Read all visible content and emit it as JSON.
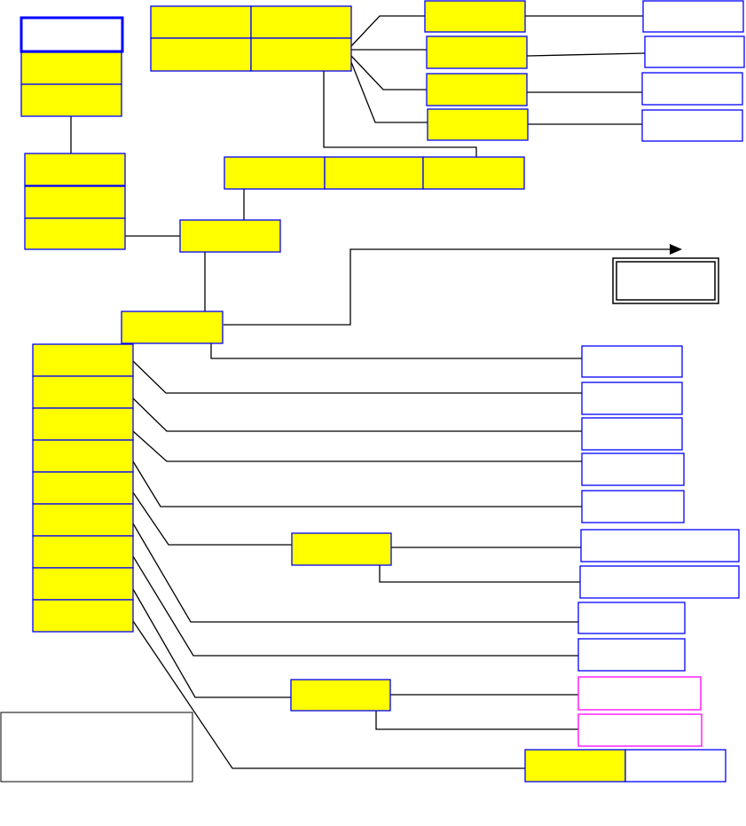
{
  "colors": {
    "node_fill": "#ffff00",
    "node_border": "#0000ff",
    "empty_fill": "#ffffff",
    "highlight_border": "#ff00ff",
    "connector": "#000000"
  }
}
